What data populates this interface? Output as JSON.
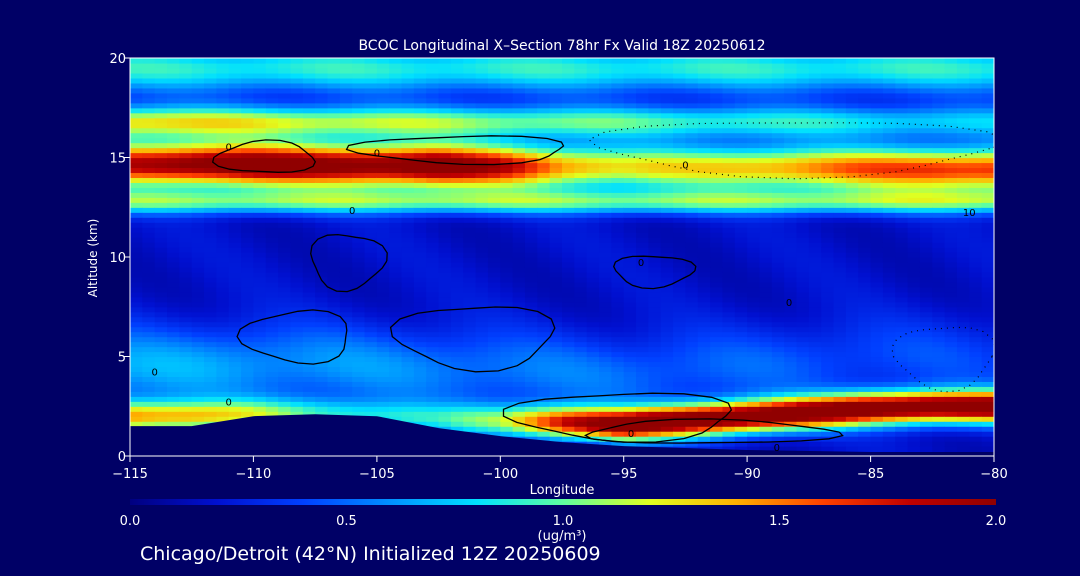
{
  "chart_data": {
    "type": "heatmap",
    "title": "BCOC Longitudinal X–Section 78hr  Fx Valid 18Z 20250612",
    "footer": "Chicago/Detroit (42°N) Initialized 12Z 20250609",
    "xlabel": "Longitude",
    "ylabel": "Altitude (km)",
    "xlim": [
      -115,
      -80
    ],
    "ylim": [
      0,
      20
    ],
    "x_ticks": [
      "−115",
      "−110",
      "−105",
      "−100",
      "−95",
      "−90",
      "−85",
      "−80"
    ],
    "y_ticks": [
      "0",
      "5",
      "10",
      "15",
      "20"
    ],
    "x_tick_values": [
      -115,
      -110,
      -105,
      -100,
      -95,
      -90,
      -85,
      -80
    ],
    "y_tick_values": [
      0,
      5,
      10,
      15,
      20
    ],
    "colorbar": {
      "min": 0.0,
      "max": 2.0,
      "ticks": [
        "0.0",
        "0.5",
        "1.0",
        "1.5",
        "2.0"
      ],
      "tick_values": [
        0,
        0.5,
        1.0,
        1.5,
        2.0
      ],
      "units": "(ug/m³)",
      "colors": [
        "#000080",
        "#0010d0",
        "#0040ff",
        "#0090ff",
        "#00e0ff",
        "#60ffa0",
        "#e0ff20",
        "#ffb000",
        "#ff4000",
        "#c00000",
        "#900000"
      ]
    },
    "contour_labels": [
      "0",
      "0",
      "0",
      "0",
      "10",
      "0",
      "0",
      "0",
      "0",
      "0",
      "0"
    ],
    "contour_label_positions": [
      {
        "lon": -111,
        "alt": 15.5
      },
      {
        "lon": -105,
        "alt": 15.2
      },
      {
        "lon": -92.5,
        "alt": 14.6
      },
      {
        "lon": -106,
        "alt": 12.3
      },
      {
        "lon": -81,
        "alt": 12.2
      },
      {
        "lon": -94.3,
        "alt": 9.7
      },
      {
        "lon": -88.3,
        "alt": 7.7
      },
      {
        "lon": -114,
        "alt": 4.2
      },
      {
        "lon": -111,
        "alt": 2.7
      },
      {
        "lon": -94.7,
        "alt": 1.1
      },
      {
        "lon": -88.8,
        "alt": 0.4
      }
    ],
    "profiles": {
      "lon": [
        -115,
        -112.5,
        -110,
        -107.5,
        -105,
        -102.5,
        -100,
        -97.5,
        -95,
        -92.5,
        -90,
        -87.5,
        -85,
        -82.5,
        -80
      ],
      "low_peak_alt": [
        2.0,
        2.0,
        2.1,
        2.1,
        2.0,
        1.9,
        1.8,
        1.7,
        1.6,
        1.8,
        2.0,
        2.2,
        2.4,
        2.5,
        2.5
      ],
      "low_peak_value": [
        1.2,
        1.1,
        0.9,
        0.7,
        0.6,
        0.6,
        0.9,
        1.6,
        2.0,
        2.0,
        2.0,
        2.0,
        2.0,
        2.0,
        2.0
      ],
      "upper_peak_value": [
        1.7,
        1.9,
        2.0,
        1.9,
        1.9,
        2.0,
        1.7,
        1.3,
        1.1,
        1.1,
        1.2,
        1.3,
        1.4,
        1.5,
        1.5
      ],
      "terrain_alt": [
        1.5,
        1.5,
        2.0,
        2.1,
        2.0,
        1.4,
        1.0,
        0.7,
        0.5,
        0.4,
        0.3,
        0.25,
        0.2,
        0.2,
        0.2
      ]
    }
  }
}
